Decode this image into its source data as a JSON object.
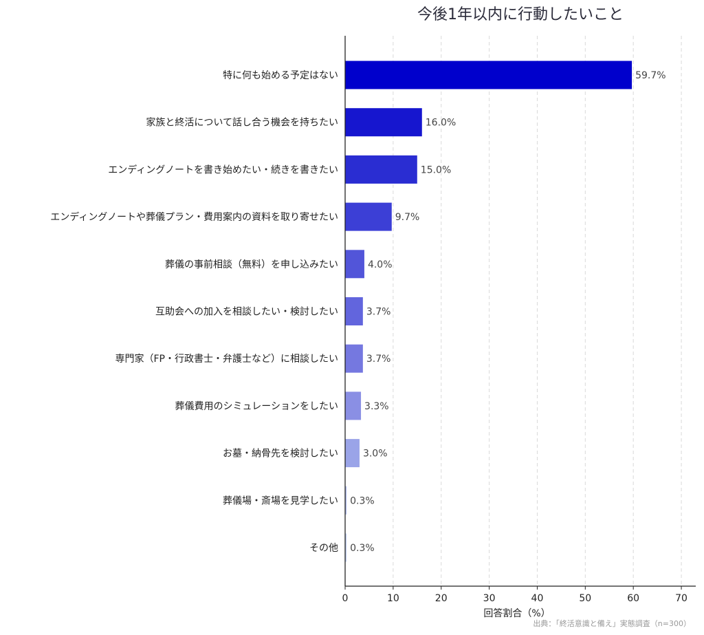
{
  "chart_data": {
    "type": "bar",
    "orientation": "horizontal",
    "title": "今後1年以内に行動したいこと",
    "xlabel": "回答割合（%）",
    "ylabel": "",
    "source": "出典：「終活意識と備え」実態調査（n=300）",
    "xlim": [
      0,
      73
    ],
    "xticks": [
      0,
      10,
      20,
      30,
      40,
      50,
      60,
      70
    ],
    "grid": "x-dashed",
    "value_suffix": "%",
    "categories": [
      "特に何も始める予定はない",
      "家族と終活について話し合う機会を持ちたい",
      "エンディングノートを書き始めたい・続きを書きたい",
      "エンディングノートや葬儀プラン・費用案内の資料を取り寄せたい",
      "葬儀の事前相談（無料）を申し込みたい",
      "互助会への加入を相談したい・検討したい",
      "専門家（FP・行政書士・弁護士など）に相談したい",
      "葬儀費用のシミュレーションをしたい",
      "お墓・納骨先を検討したい",
      "葬儀場・斎場を見学したい",
      "その他"
    ],
    "values": [
      59.7,
      16.0,
      15.0,
      9.7,
      4.0,
      3.7,
      3.7,
      3.3,
      3.0,
      0.3,
      0.3
    ],
    "bar_colors": [
      "#0000cc",
      "#1616cf",
      "#2a2dd2",
      "#3c3fd6",
      "#5255d9",
      "#6265dd",
      "#7578e0",
      "#8a8fe4",
      "#9aa4e8",
      "#b0bdec",
      "#c2d0f0"
    ]
  }
}
